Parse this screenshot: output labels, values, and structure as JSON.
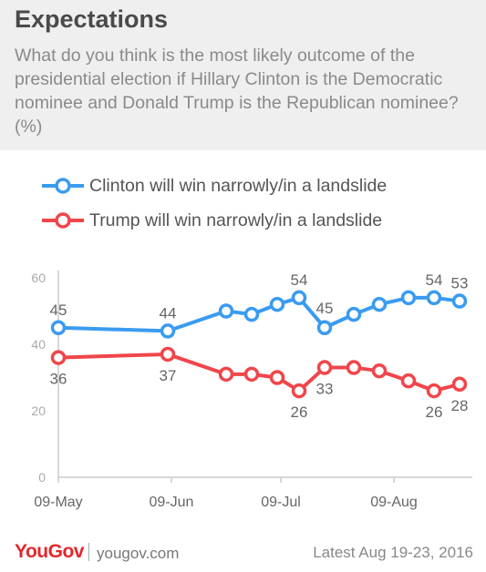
{
  "header": {
    "title": "Expectations",
    "subtitle": "What do you think is the most likely outcome of the presidential election if Hillary Clinton is the Democratic nominee and Donald Trump is the Republican nominee? (%)"
  },
  "footer": {
    "brand": "YouGov",
    "site": "yougov.com",
    "latest": "Latest  Aug 19-23, 2016"
  },
  "colors": {
    "clinton": "#3a9bf0",
    "trump": "#f0464b",
    "axis": "#cccccc",
    "tick": "#aaaaaa",
    "label": "#666666"
  },
  "chart_data": {
    "type": "line",
    "title": "",
    "xlabel": "",
    "ylabel": "",
    "ylim": [
      0,
      60
    ],
    "yticks": [
      0,
      20,
      40,
      60
    ],
    "x_ticks": [
      "09-May",
      "09-Jun",
      "09-Jul",
      "09-Aug"
    ],
    "x_tick_days": [
      0,
      31,
      61,
      92
    ],
    "grid": false,
    "legend": "top-left",
    "x": [
      0,
      30,
      46,
      53,
      60,
      66,
      73,
      81,
      88,
      96,
      103,
      110
    ],
    "series": [
      {
        "name": "Clinton will win narrowly/in a landslide",
        "color": "#3a9bf0",
        "values": [
          45,
          44,
          50,
          49,
          52,
          54,
          45,
          49,
          52,
          54,
          54,
          53
        ],
        "labels": [
          "45",
          "44",
          "",
          "",
          "",
          "54",
          "45",
          "",
          "",
          "",
          "54",
          "53"
        ],
        "label_pos": [
          "above",
          "above",
          "",
          "",
          "",
          "above",
          "right",
          "",
          "",
          "",
          "above",
          "above"
        ]
      },
      {
        "name": "Trump will win narrowly/in a landslide",
        "color": "#f0464b",
        "values": [
          36,
          37,
          31,
          31,
          30,
          26,
          33,
          33,
          32,
          29,
          26,
          28
        ],
        "labels": [
          "36",
          "37",
          "",
          "",
          "",
          "26",
          "33",
          "",
          "",
          "",
          "26",
          "28"
        ],
        "label_pos": [
          "below",
          "below",
          "",
          "",
          "",
          "below",
          "below",
          "",
          "",
          "",
          "below",
          "below"
        ]
      }
    ]
  }
}
